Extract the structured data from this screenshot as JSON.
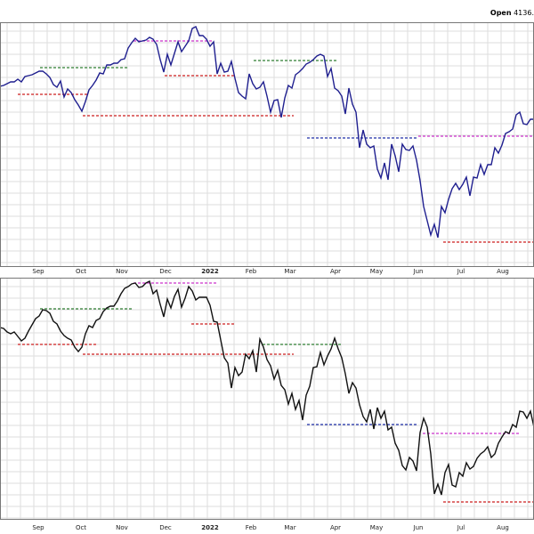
{
  "header": {
    "label": "Open",
    "value": "4136."
  },
  "colors": {
    "top_price": "#1f1f8f",
    "bottom_price": "#111111",
    "green_level": "#2e7d32",
    "red_level": "#cc1f1f",
    "magenta_level": "#cc33cc",
    "blue_level": "#1f2fa8",
    "grid": "#dedede",
    "border": "#555555"
  },
  "months": [
    "Sep",
    "Oct",
    "Nov",
    "Dec",
    "2022",
    "Feb",
    "Mar",
    "Apr",
    "May",
    "Jun",
    "Jul",
    "Aug"
  ],
  "chart_data": [
    {
      "type": "line",
      "name": "top-panel",
      "x": [
        0,
        4,
        8,
        12,
        16,
        20,
        24,
        28,
        32,
        36,
        40,
        44,
        48,
        52,
        56,
        60,
        64,
        68,
        72,
        76,
        80,
        84,
        88,
        92,
        96,
        100,
        104,
        108,
        112,
        116,
        120,
        124,
        128,
        132,
        136,
        140,
        144,
        148,
        152,
        156,
        160,
        164,
        168,
        172,
        176,
        180,
        184,
        188,
        192,
        196,
        200,
        204,
        208,
        212,
        216,
        220,
        224,
        228,
        232,
        236,
        240,
        244,
        248,
        252,
        256,
        260,
        264,
        268,
        272,
        276,
        280,
        284,
        288,
        292,
        296,
        300,
        304,
        308,
        312,
        316,
        320,
        324,
        328,
        332,
        336,
        340,
        344,
        348,
        352,
        356,
        360,
        364,
        368,
        372,
        376,
        380,
        384,
        388,
        392,
        396,
        400,
        404,
        408,
        412,
        416,
        420,
        424,
        428,
        432,
        436,
        440,
        444,
        448,
        452,
        456,
        460,
        464,
        468,
        472,
        476,
        480,
        484,
        488,
        492,
        496,
        500,
        504,
        508,
        512,
        516,
        520,
        524,
        528,
        532,
        536,
        540,
        544,
        548,
        552,
        556,
        560,
        564,
        568,
        572,
        576,
        580,
        584,
        588,
        592,
        596,
        600
      ],
      "values": [
        97,
        96,
        94,
        92,
        92,
        89,
        92,
        86,
        85,
        84,
        82,
        80,
        80,
        83,
        87,
        95,
        98,
        91,
        109,
        100,
        104,
        112,
        118,
        125,
        114,
        101,
        96,
        90,
        82,
        83,
        73,
        73,
        71,
        71,
        67,
        66,
        54,
        48,
        43,
        47,
        46,
        45,
        42,
        44,
        50,
        67,
        81,
        61,
        73,
        60,
        47,
        58,
        52,
        46,
        32,
        30,
        40,
        40,
        44,
        52,
        47,
        83,
        71,
        81,
        80,
        69,
        88,
        104,
        108,
        111,
        83,
        94,
        100,
        98,
        92,
        108,
        126,
        113,
        112,
        132,
        110,
        96,
        99,
        84,
        81,
        77,
        72,
        70,
        67,
        63,
        61,
        63,
        86,
        77,
        99,
        102,
        108,
        128,
        99,
        117,
        126,
        166,
        146,
        162,
        166,
        164,
        190,
        200,
        183,
        202,
        162,
        175,
        193,
        162,
        168,
        169,
        164,
        180,
        203,
        232,
        248,
        264,
        252,
        267,
        232,
        239,
        224,
        212,
        206,
        213,
        207,
        199,
        220,
        199,
        200,
        185,
        196,
        185,
        185,
        166,
        172,
        163,
        150,
        148,
        145,
        129,
        126,
        139,
        140,
        134,
        134
      ]
    },
    {
      "type": "line",
      "name": "bottom-panel",
      "x": [
        0,
        4,
        8,
        12,
        16,
        20,
        24,
        28,
        32,
        36,
        40,
        44,
        48,
        52,
        56,
        60,
        64,
        68,
        72,
        76,
        80,
        84,
        88,
        92,
        96,
        100,
        104,
        108,
        112,
        116,
        120,
        124,
        128,
        132,
        136,
        140,
        144,
        148,
        152,
        156,
        160,
        164,
        168,
        172,
        176,
        180,
        184,
        188,
        192,
        196,
        200,
        204,
        208,
        212,
        216,
        220,
        224,
        228,
        232,
        236,
        240,
        244,
        248,
        252,
        256,
        260,
        264,
        268,
        272,
        276,
        280,
        284,
        288,
        292,
        296,
        300,
        304,
        308,
        312,
        316,
        320,
        324,
        328,
        332,
        336,
        340,
        344,
        348,
        352,
        356,
        360,
        364,
        368,
        372,
        376,
        380,
        384,
        388,
        392,
        396,
        400,
        404,
        408,
        412,
        416,
        420,
        424,
        428,
        432,
        436,
        440,
        444,
        448,
        452,
        456,
        460,
        464,
        468,
        472,
        476,
        480,
        484,
        488,
        492,
        496,
        500,
        504,
        508,
        512,
        516,
        520,
        524,
        528,
        532,
        536,
        540,
        544,
        548,
        552,
        556,
        560,
        564,
        568,
        572,
        576,
        580,
        584,
        588,
        592,
        596,
        600
      ],
      "values": [
        368,
        369,
        373,
        375,
        373,
        378,
        383,
        380,
        372,
        365,
        358,
        355,
        348,
        349,
        352,
        361,
        364,
        372,
        377,
        380,
        382,
        390,
        395,
        390,
        375,
        366,
        368,
        360,
        358,
        350,
        346,
        344,
        344,
        338,
        330,
        324,
        322,
        319,
        318,
        323,
        322,
        318,
        316,
        330,
        326,
        342,
        356,
        336,
        346,
        333,
        325,
        345,
        335,
        322,
        327,
        337,
        334,
        334,
        334,
        343,
        361,
        362,
        382,
        402,
        408,
        436,
        413,
        422,
        418,
        398,
        403,
        394,
        418,
        381,
        390,
        404,
        411,
        426,
        416,
        433,
        438,
        454,
        442,
        460,
        450,
        472,
        444,
        434,
        413,
        412,
        396,
        410,
        400,
        392,
        380,
        392,
        402,
        420,
        442,
        430,
        436,
        455,
        468,
        474,
        460,
        482,
        458,
        470,
        462,
        483,
        480,
        498,
        506,
        523,
        528,
        514,
        518,
        529,
        486,
        470,
        480,
        510,
        555,
        544,
        556,
        531,
        522,
        545,
        547,
        531,
        535,
        520,
        527,
        524,
        515,
        510,
        507,
        502,
        514,
        510,
        498,
        491,
        485,
        487,
        477,
        480,
        462,
        463,
        470,
        462,
        480
      ]
    }
  ]
}
